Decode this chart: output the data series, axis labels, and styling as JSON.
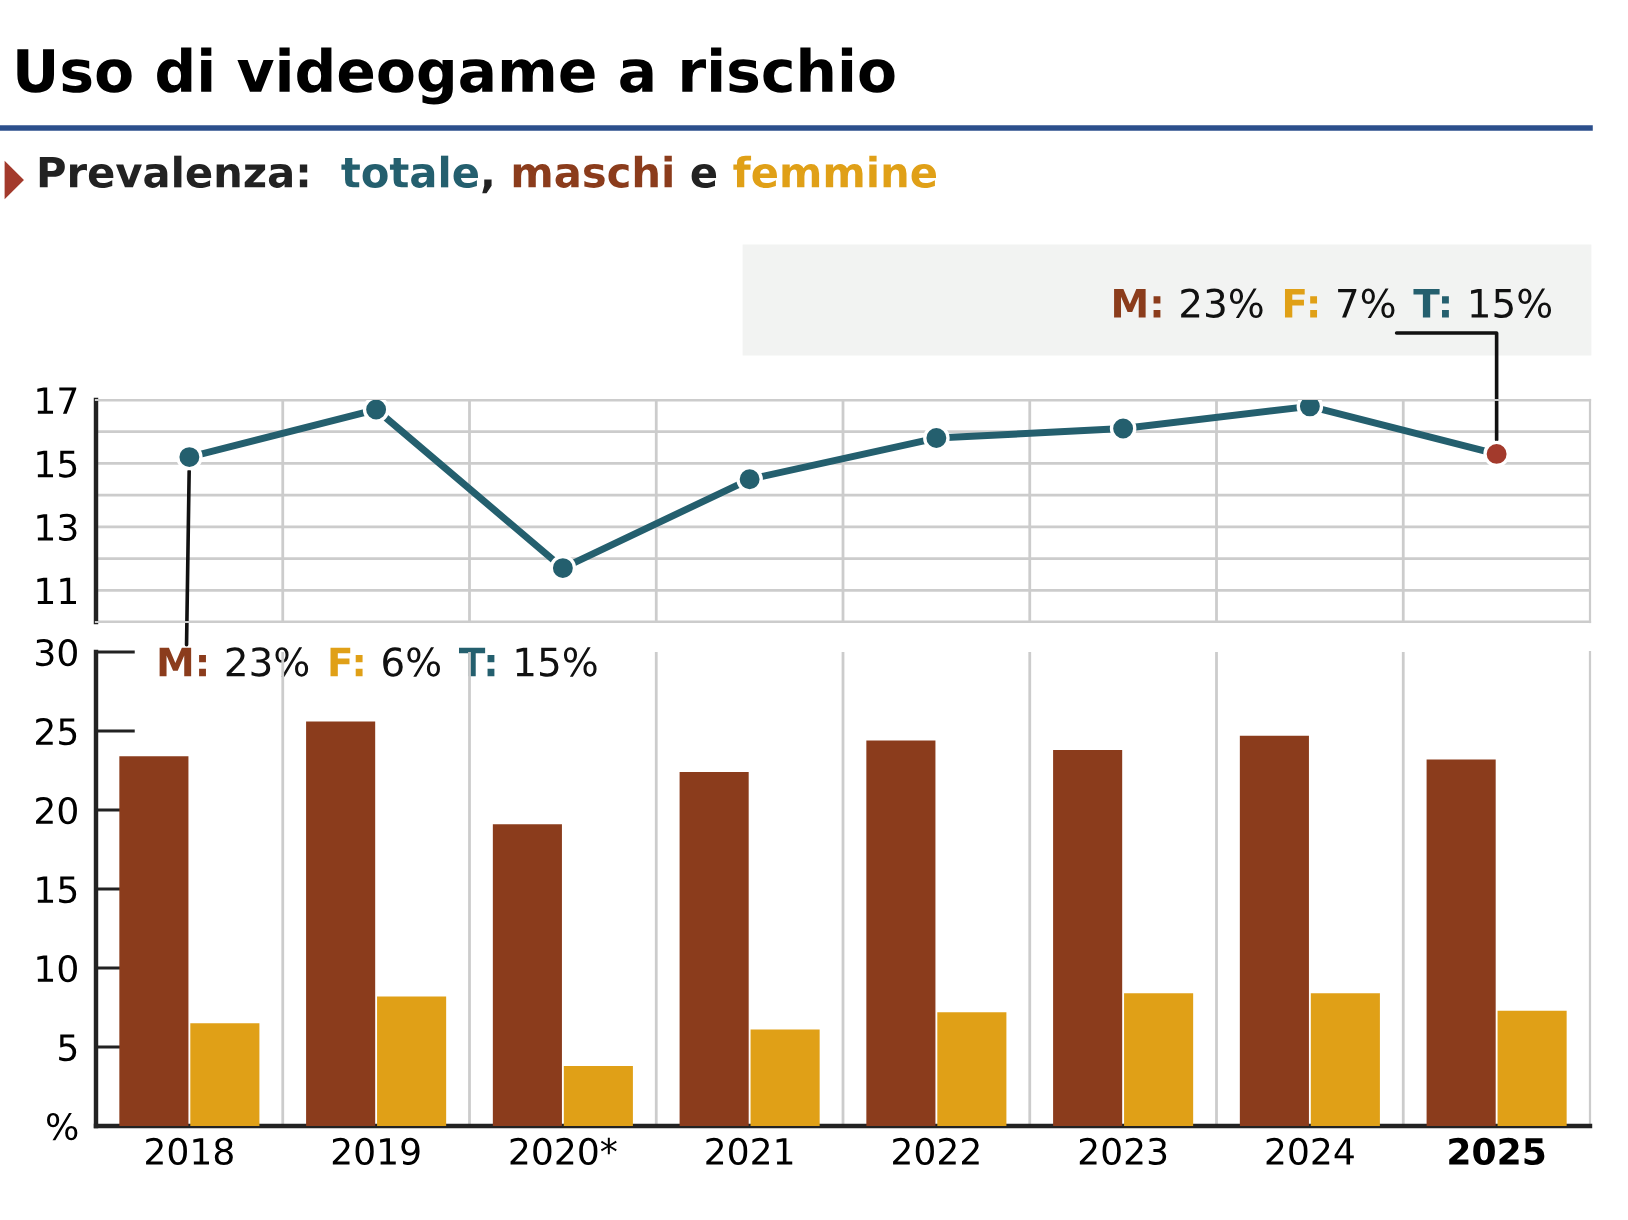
{
  "chart_data": [
    {
      "type": "line",
      "title": "Uso di videogame a rischio",
      "subtitle": "Prevalenza:  totale, maschi e femmine",
      "categories": [
        null,
        null,
        null,
        null,
        null,
        null,
        null,
        null
      ],
      "series": [
        {
          "color": "#245f6e",
          "colors": [
            "#245f6e",
            "#245f6e",
            "#245f6e",
            "#245f6e",
            "#245f6e",
            "#245f6e",
            "#245f6e",
            "#a33a2c"
          ],
          "values": [
            15.2,
            16.7,
            11.7,
            14.5,
            15.8,
            16.1,
            16.8,
            15.3
          ]
        }
      ],
      "ylim": [
        10,
        17
      ],
      "yticks": [
        {
          "value": 10,
          "label": null
        },
        11,
        {
          "value": 12,
          "label": null
        },
        13,
        {
          "value": 14,
          "label": null
        },
        15,
        {
          "value": 16,
          "label": null
        },
        17
      ],
      "grid": true,
      "marker": "circle",
      "line_style": "solid",
      "tick_labels": "y",
      "annotations": [
        "M: 23%  F: 6%  T: 15%",
        "M: 23%  F: 7%  T: 15%"
      ]
    },
    {
      "type": "bar",
      "categories": [
        "2018",
        "2019",
        "2020*",
        "2021",
        "2022",
        "2023",
        "2024",
        "2025"
      ],
      "series": [
        {
          "color": "#8b3c1c",
          "values": [
            23.4,
            25.6,
            19.1,
            22.4,
            24.4,
            23.8,
            24.7,
            23.2
          ]
        },
        {
          "color": "#e0a017",
          "values": [
            6.5,
            8.2,
            3.8,
            6.1,
            7.2,
            8.4,
            8.4,
            7.3
          ]
        }
      ],
      "ylim": [
        0,
        30
      ],
      "yticks": [
        {
          "value": 0,
          "label": "%"
        },
        5,
        10,
        15,
        20,
        25,
        30
      ],
      "grid": "x"
    }
  ]
}
